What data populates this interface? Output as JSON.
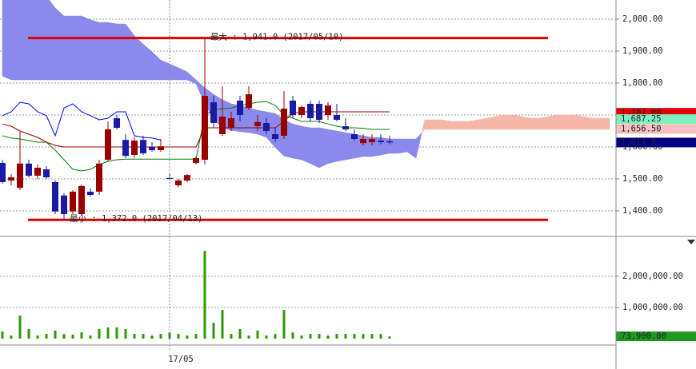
{
  "chart_data": [
    {
      "type": "candlestick",
      "open": [
        1550,
        1495,
        1472,
        1548,
        1510,
        1530,
        1490,
        1448,
        1398,
        1390,
        1460,
        1460,
        1560,
        1690,
        1622,
        1575,
        1622,
        1600,
        1590,
        1503,
        1480,
        1495,
        1550,
        1560,
        1740,
        1640,
        1660,
        1745,
        1722,
        1665,
        1675,
        1640,
        1635,
        1745,
        1700,
        1735,
        1735,
        1700,
        1700,
        1665,
        1640,
        1612,
        1615,
        1620,
        1618
      ],
      "high": [
        1560,
        1515,
        1648,
        1560,
        1545,
        1540,
        1495,
        1455,
        1465,
        1482,
        1470,
        1560,
        1680,
        1700,
        1640,
        1630,
        1635,
        1615,
        1625,
        1520,
        1500,
        1515,
        1570,
        1941,
        1760,
        1790,
        1710,
        1760,
        1790,
        1700,
        1690,
        1660,
        1775,
        1760,
        1730,
        1745,
        1745,
        1740,
        1735,
        1690,
        1655,
        1640,
        1640,
        1640,
        1635
      ],
      "low": [
        1485,
        1480,
        1465,
        1505,
        1500,
        1500,
        1390,
        1372,
        1390,
        1385,
        1445,
        1450,
        1555,
        1655,
        1565,
        1565,
        1575,
        1585,
        1585,
        1495,
        1475,
        1490,
        1545,
        1545,
        1660,
        1635,
        1650,
        1680,
        1715,
        1650,
        1640,
        1615,
        1625,
        1690,
        1690,
        1680,
        1675,
        1685,
        1680,
        1650,
        1620,
        1605,
        1605,
        1608,
        1608
      ],
      "close": [
        1490,
        1505,
        1548,
        1510,
        1535,
        1505,
        1398,
        1390,
        1460,
        1478,
        1450,
        1548,
        1655,
        1660,
        1572,
        1620,
        1580,
        1590,
        1602,
        1500,
        1495,
        1512,
        1565,
        1760,
        1675,
        1695,
        1690,
        1700,
        1765,
        1678,
        1650,
        1625,
        1720,
        1700,
        1725,
        1690,
        1685,
        1730,
        1685,
        1655,
        1625,
        1625,
        1625,
        1615,
        1614
      ],
      "up_color": "#990000",
      "down_color": "#1a1aa6",
      "cloud": {
        "span_a": [
          1822,
          1810,
          1810,
          1810,
          1810,
          1810,
          1810,
          1810,
          1810,
          1810,
          1810,
          1810,
          1810,
          1810,
          1810,
          1810,
          1810,
          1810,
          1810,
          1810,
          1810,
          1810,
          1798,
          1735,
          1685,
          1660,
          1652,
          1648,
          1645,
          1640,
          1630,
          1598,
          1572,
          1565,
          1560,
          1548,
          1535,
          1548,
          1555,
          1560,
          1565,
          1570,
          1570,
          1575,
          1580,
          1580,
          1585,
          1565,
          1685,
          1685,
          1685,
          1680,
          1680,
          1680,
          1685,
          1690,
          1695,
          1700,
          1700,
          1695,
          1690,
          1690,
          1695,
          1700,
          1700,
          1700,
          1695,
          1690,
          1690,
          1690
        ],
        "span_b": [
          2110,
          2110,
          2110,
          2110,
          2110,
          2072,
          2035,
          2010,
          2010,
          2010,
          1998,
          1990,
          1990,
          1985,
          1985,
          1948,
          1922,
          1898,
          1872,
          1860,
          1848,
          1835,
          1810,
          1785,
          1765,
          1748,
          1735,
          1730,
          1722,
          1715,
          1710,
          1705,
          1685,
          1672,
          1665,
          1660,
          1660,
          1655,
          1650,
          1645,
          1640,
          1635,
          1630,
          1630,
          1625,
          1625,
          1625,
          1625,
          1655,
          1655,
          1655,
          1655,
          1655,
          1655,
          1655,
          1655,
          1655,
          1655,
          1655,
          1655,
          1655,
          1655,
          1655,
          1655,
          1655,
          1655,
          1655,
          1655,
          1655,
          1655
        ],
        "bear_color": "#8a8aec",
        "bull_color": "#f6b7a8"
      },
      "lines": [
        {
          "color": "#0000ff",
          "values": [
            1698,
            1710,
            1740,
            1735,
            1710,
            1698,
            1635,
            1722,
            1735,
            1710,
            1698,
            1685,
            1690,
            1710,
            1710,
            1635,
            1630,
            1628,
            1622,
            null,
            null,
            null,
            null,
            null,
            null,
            null,
            null,
            null,
            null,
            null,
            null,
            null,
            null,
            null,
            null,
            null,
            null,
            null,
            null,
            null,
            null,
            null,
            null,
            null,
            null
          ]
        },
        {
          "color": "#008000",
          "values": [
            1635,
            1628,
            1625,
            1620,
            1615,
            1615,
            1590,
            1560,
            1530,
            1525,
            1530,
            1545,
            1555,
            1560,
            1562,
            1562,
            1562,
            1562,
            1562,
            1562,
            1562,
            1562,
            1562,
            1700,
            1715,
            1720,
            1722,
            1730,
            1735,
            1740,
            1742,
            1730,
            1700,
            1690,
            1680,
            1680,
            1680,
            1672,
            1665,
            1660,
            1660,
            1658,
            1655,
            1655,
            1655
          ]
        },
        {
          "color": "#990000",
          "values": [
            1672,
            1665,
            1650,
            1640,
            1630,
            1615,
            1605,
            1600,
            1600,
            1600,
            1600,
            1600,
            1600,
            1600,
            1600,
            1600,
            1600,
            1600,
            1600,
            1600,
            1600,
            1600,
            1600,
            1660,
            1660,
            1660,
            1660,
            1660,
            1660,
            1660,
            1660,
            1660,
            1680,
            1705,
            1710,
            1710,
            1710,
            1710,
            1710,
            1710,
            1710,
            1710,
            1710,
            1710,
            1710
          ]
        }
      ],
      "hlines": [
        {
          "value": 1941,
          "label": "最大 : 1,941.0 (2017/05/10)"
        },
        {
          "value": 1372,
          "label": "最小 : 1,372.0 (2017/04/13)"
        }
      ],
      "hline_color": "#dd0000",
      "price_labels": [
        {
          "value": 1707,
          "label": "1,707.00",
          "color": "#e00000",
          "text_color": "#000000"
        },
        {
          "value": 1687.25,
          "label": "1,687.25",
          "color": "#7ff0c0",
          "text_color": "#000000"
        },
        {
          "value": 1656.5,
          "label": "1,656.50",
          "color": "#f7c0c0",
          "text_color": "#000000"
        },
        {
          "value": 1614,
          "label": "1,614.0",
          "color": "#000080",
          "text_color": "#ffffff"
        }
      ],
      "ylim": [
        1322.5,
        2060
      ],
      "yticks": [
        {
          "value": 1400,
          "label": "1,400.00"
        },
        {
          "value": 1500,
          "label": "1,500.00"
        },
        {
          "value": 1600,
          "label": "1,600.00"
        },
        {
          "value": 1700,
          "label": "1,700.00"
        },
        {
          "value": 1800,
          "label": "1,800.00"
        },
        {
          "value": 1900,
          "label": "1,900.00"
        },
        {
          "value": 2000,
          "label": "2,000.00"
        }
      ],
      "grid": true
    },
    {
      "type": "bar",
      "categories": [
        null,
        null,
        null,
        null,
        null,
        null,
        null,
        null,
        null,
        null,
        null,
        null,
        null,
        null,
        null,
        null,
        null,
        null,
        null,
        "17/05",
        null,
        null,
        null,
        null,
        null,
        null,
        null,
        null,
        null,
        null,
        null,
        null,
        null,
        null,
        null,
        null,
        null,
        null,
        null,
        null,
        null,
        null,
        null,
        null,
        null
      ],
      "values": [
        230000,
        100000,
        740000,
        310000,
        100000,
        150000,
        260000,
        150000,
        130000,
        200000,
        100000,
        310000,
        360000,
        360000,
        310000,
        150000,
        150000,
        100000,
        150000,
        200000,
        150000,
        100000,
        150000,
        2820000,
        510000,
        920000,
        150000,
        310000,
        100000,
        260000,
        100000,
        150000,
        920000,
        200000,
        100000,
        150000,
        150000,
        100000,
        150000,
        150000,
        150000,
        150000,
        150000,
        150000,
        73900
      ],
      "color": "#2a9a00",
      "last_label": {
        "value": 73900,
        "label": "73,900.00",
        "color": "#1e9a1e",
        "text_color": "#ffffff"
      },
      "ylim": [
        -205000,
        3256000
      ],
      "yticks": [
        {
          "value": 1000000,
          "label": "1,000,000.00"
        },
        {
          "value": 2000000,
          "label": "2,000,000.00"
        }
      ],
      "grid": true
    }
  ]
}
